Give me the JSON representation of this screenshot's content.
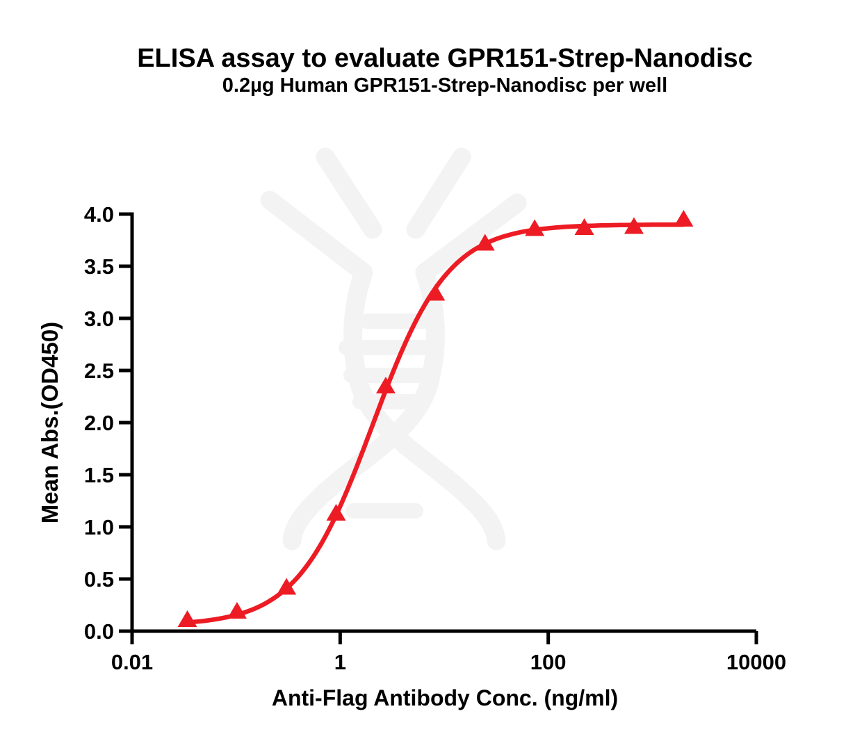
{
  "chart_data": {
    "type": "scatter",
    "title": "ELISA assay to evaluate GPR151-Strep-Nanodisc",
    "subtitle": "0.2µg Human GPR151-Strep-Nanodisc per well",
    "xlabel": "Anti-Flag Antibody Conc. (ng/ml)",
    "ylabel": "Mean Abs.(OD450)",
    "x_scale": "log10",
    "xlim": [
      0.01,
      10000
    ],
    "ylim": [
      0.0,
      4.0
    ],
    "grid": false,
    "legend": "none",
    "x_ticks": [
      {
        "value": 0.01,
        "label": "0.01"
      },
      {
        "value": 1,
        "label": "1"
      },
      {
        "value": 100,
        "label": "100"
      },
      {
        "value": 10000,
        "label": "10000"
      }
    ],
    "y_ticks": [
      {
        "value": 0.0,
        "label": "0.0"
      },
      {
        "value": 0.5,
        "label": "0.5"
      },
      {
        "value": 1.0,
        "label": "1.0"
      },
      {
        "value": 1.5,
        "label": "1.5"
      },
      {
        "value": 2.0,
        "label": "2.0"
      },
      {
        "value": 2.5,
        "label": "2.5"
      },
      {
        "value": 3.0,
        "label": "3.0"
      },
      {
        "value": 3.5,
        "label": "3.5"
      },
      {
        "value": 4.0,
        "label": "4.0"
      }
    ],
    "series": [
      {
        "marker": "filled-triangle-up",
        "color": "#ED1C24",
        "points": [
          {
            "x": 0.034,
            "y": 0.11
          },
          {
            "x": 0.102,
            "y": 0.19
          },
          {
            "x": 0.305,
            "y": 0.42
          },
          {
            "x": 0.914,
            "y": 1.13
          },
          {
            "x": 2.743,
            "y": 2.35
          },
          {
            "x": 8.23,
            "y": 3.24
          },
          {
            "x": 24.69,
            "y": 3.72
          },
          {
            "x": 74.07,
            "y": 3.86
          },
          {
            "x": 222.2,
            "y": 3.87
          },
          {
            "x": 666.7,
            "y": 3.88
          },
          {
            "x": 2000,
            "y": 3.95
          }
        ]
      }
    ],
    "fit_curve": {
      "model": "4PL-sigmoid",
      "bottom": 0.055,
      "top": 3.9,
      "ec50": 2.05,
      "hill": 1.2,
      "x_range": [
        0.034,
        2000
      ],
      "color": "#ED1C24"
    }
  },
  "colors": {
    "axis": "#000000",
    "text": "#000000",
    "curve": "#ED1C24",
    "background": "#FFFFFF"
  },
  "watermark": {
    "name": "dna-helix-logo",
    "color": "#F3F3F3"
  }
}
